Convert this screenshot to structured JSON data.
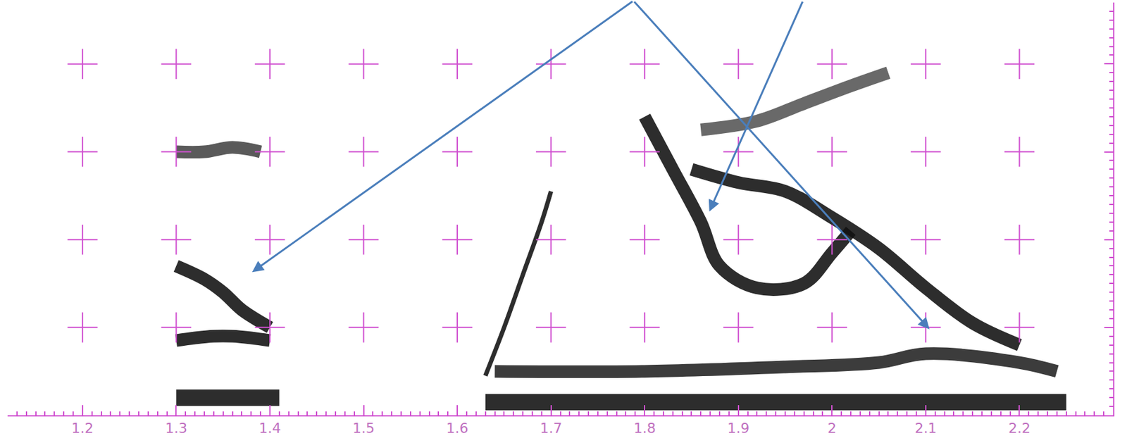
{
  "chart_data": {
    "type": "line",
    "xlim": [
      1.12,
      2.3
    ],
    "xticks": [
      1.2,
      1.3,
      1.4,
      1.5,
      1.6,
      1.7,
      1.8,
      1.9,
      2,
      2.1,
      2.2
    ],
    "ylim": [
      0,
      4.7
    ],
    "yticks": [
      1,
      2,
      3,
      4
    ],
    "tick_labels": "x",
    "grid": true,
    "series": [
      {
        "color": "#111111",
        "line_style": "bar",
        "x": [
          1.3,
          1.33,
          1.36,
          1.39,
          1.41
        ],
        "values": [
          0.2,
          0.2,
          0.2,
          0.2,
          0.2
        ]
      },
      {
        "color": "#111111",
        "line_style": "band",
        "x": [
          1.3,
          1.32,
          1.34,
          1.36,
          1.38,
          1.4
        ],
        "values": [
          0.85,
          0.88,
          0.9,
          0.9,
          0.88,
          0.85
        ]
      },
      {
        "color": "#111111",
        "line_style": "band",
        "x": [
          1.3,
          1.33,
          1.35,
          1.37,
          1.4
        ],
        "values": [
          1.7,
          1.55,
          1.4,
          1.2,
          1.0
        ]
      },
      {
        "color": "#444444",
        "line_style": "band",
        "x": [
          1.3,
          1.33,
          1.36,
          1.39
        ],
        "values": [
          3.0,
          3.0,
          3.05,
          3.0
        ]
      },
      {
        "color": "#111111",
        "line_style": "thin",
        "x": [
          1.63,
          1.65,
          1.67,
          1.69,
          1.7
        ],
        "values": [
          0.45,
          1.0,
          1.6,
          2.2,
          2.55
        ]
      },
      {
        "color": "#111111",
        "line_style": "bar",
        "x": [
          1.63,
          1.8,
          2.0,
          2.1,
          2.25
        ],
        "values": [
          0.15,
          0.15,
          0.15,
          0.15,
          0.15
        ]
      },
      {
        "color": "#222222",
        "line_style": "band",
        "x": [
          1.64,
          1.8,
          1.95,
          2.05,
          2.1,
          2.2,
          2.24
        ],
        "values": [
          0.5,
          0.5,
          0.55,
          0.6,
          0.7,
          0.6,
          0.5
        ]
      },
      {
        "color": "#111111",
        "line_style": "band",
        "x": [
          1.8,
          1.83,
          1.86,
          1.88,
          1.92,
          1.97,
          2.0,
          2.02
        ],
        "values": [
          3.4,
          2.8,
          2.2,
          1.7,
          1.45,
          1.5,
          1.85,
          2.1
        ]
      },
      {
        "color": "#111111",
        "line_style": "band",
        "x": [
          1.85,
          1.9,
          1.95,
          2.0,
          2.05,
          2.1,
          2.15,
          2.2
        ],
        "values": [
          2.8,
          2.65,
          2.55,
          2.25,
          1.9,
          1.45,
          1.05,
          0.8
        ]
      },
      {
        "color": "#555555",
        "line_style": "band",
        "x": [
          1.86,
          1.92,
          1.97,
          2.02,
          2.06
        ],
        "values": [
          3.25,
          3.35,
          3.55,
          3.75,
          3.9
        ]
      }
    ]
  }
}
